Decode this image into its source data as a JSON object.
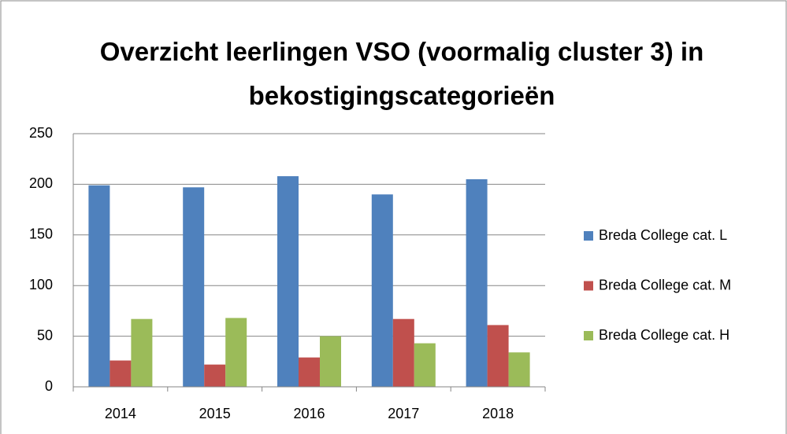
{
  "chart_data": {
    "type": "bar",
    "title": "Overzicht leerlingen VSO (voormalig cluster 3) in bekostigingscategorieën",
    "categories": [
      "2014",
      "2015",
      "2016",
      "2017",
      "2018"
    ],
    "series": [
      {
        "name": "Breda College cat. L",
        "color": "#4f81bd",
        "values": [
          199,
          197,
          208,
          190,
          205
        ]
      },
      {
        "name": "Breda College cat. M",
        "color": "#c0504d",
        "values": [
          26,
          22,
          29,
          67,
          61
        ]
      },
      {
        "name": "Breda College cat. H",
        "color": "#9bbb59",
        "values": [
          67,
          68,
          50,
          43,
          34
        ]
      }
    ],
    "ylim": [
      0,
      250
    ],
    "yticks": [
      0,
      50,
      100,
      150,
      200,
      250
    ],
    "grid": true,
    "legend": "right"
  }
}
